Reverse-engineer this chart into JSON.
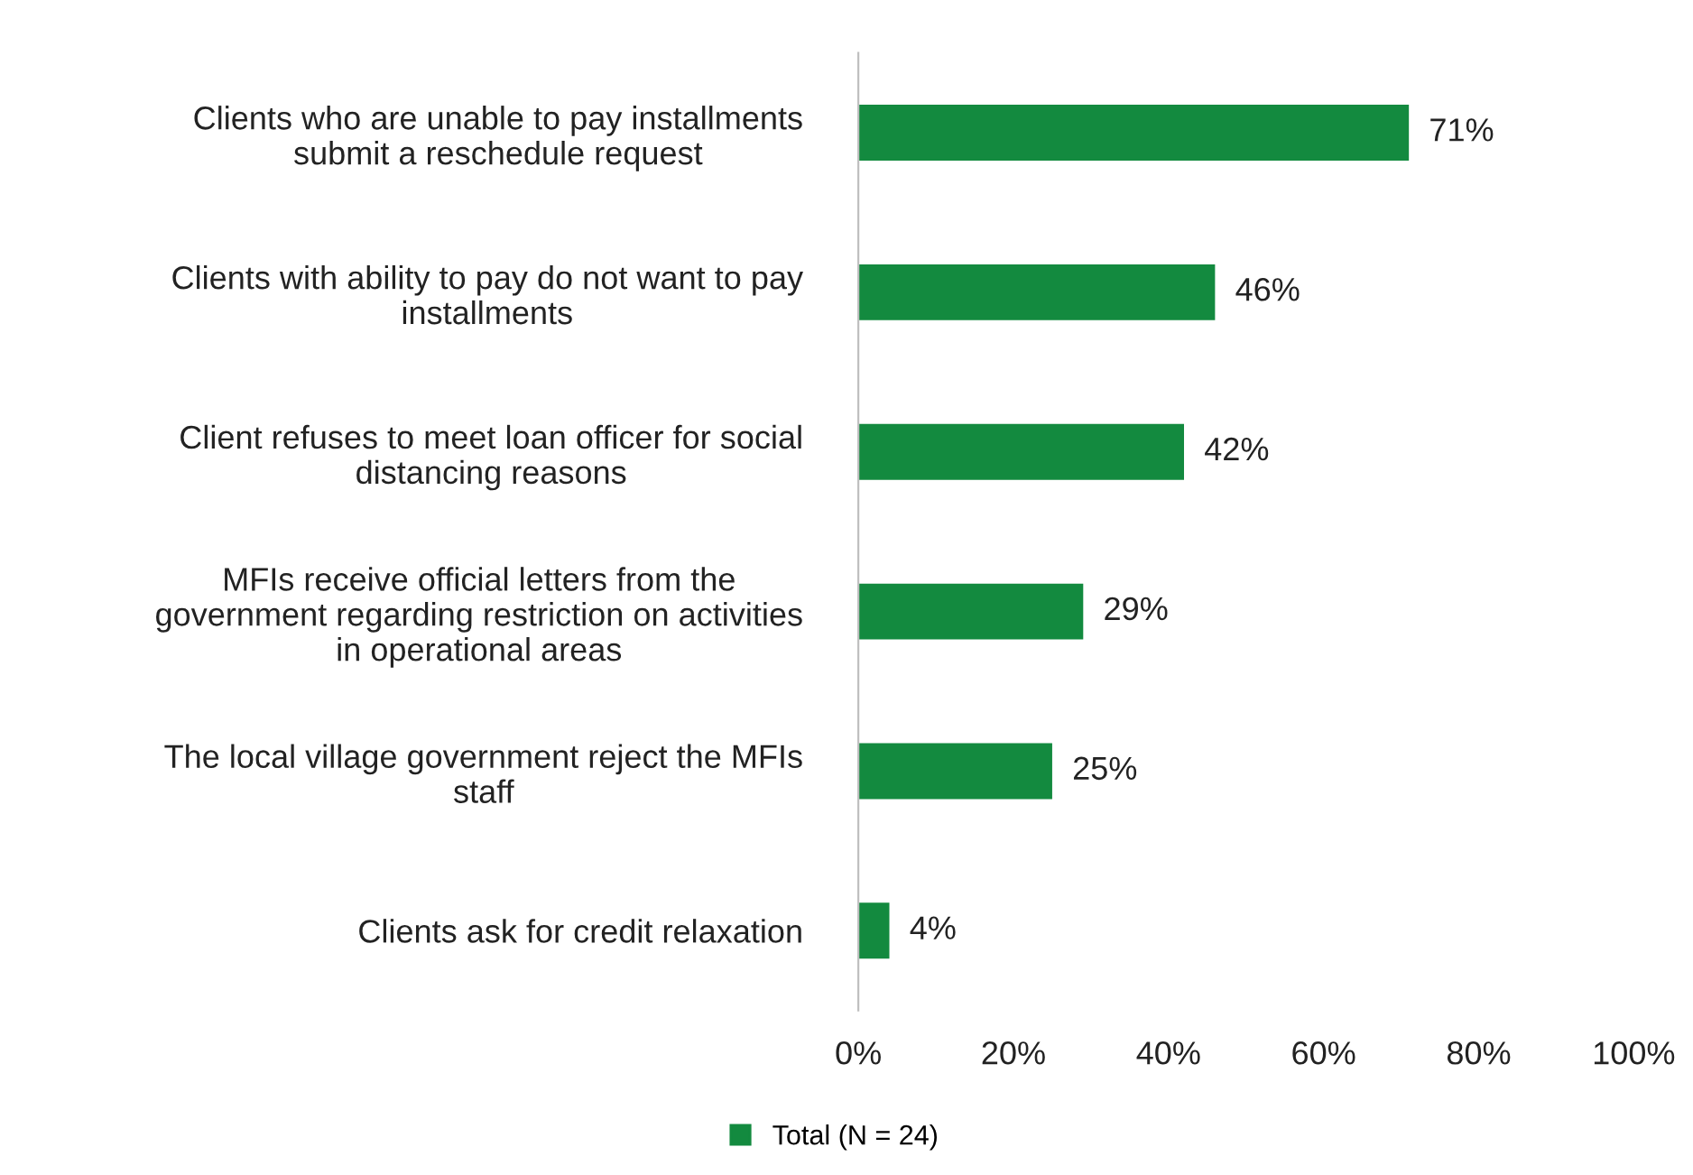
{
  "chart_data": {
    "type": "bar",
    "orientation": "horizontal",
    "categories": [
      "Clients who are unable to pay installments\nsubmit a reschedule request",
      "Clients with ability to pay do not want to pay\ninstallments",
      "Client refuses to meet loan officer for social\ndistancing reasons",
      "MFIs receive official letters from the\ngovernment regarding restriction on activities\nin operational areas",
      "The local village government reject the MFIs\nstaff",
      "Clients ask for credit relaxation"
    ],
    "series": [
      {
        "name": "Total (N = 24)",
        "color": "#138a3f",
        "values": [
          71,
          46,
          42,
          29,
          25,
          4
        ],
        "value_labels": [
          "71%",
          "46%",
          "42%",
          "29%",
          "25%",
          "4%"
        ]
      }
    ],
    "xlim": [
      0,
      100
    ],
    "xticks": [
      {
        "value": 0,
        "label": "0%"
      },
      {
        "value": 20,
        "label": "20%"
      },
      {
        "value": 40,
        "label": "40%"
      },
      {
        "value": 60,
        "label": "60%"
      },
      {
        "value": 80,
        "label": "80%"
      },
      {
        "value": 100,
        "label": "100%"
      }
    ],
    "grid": false,
    "legend": "bottom"
  }
}
